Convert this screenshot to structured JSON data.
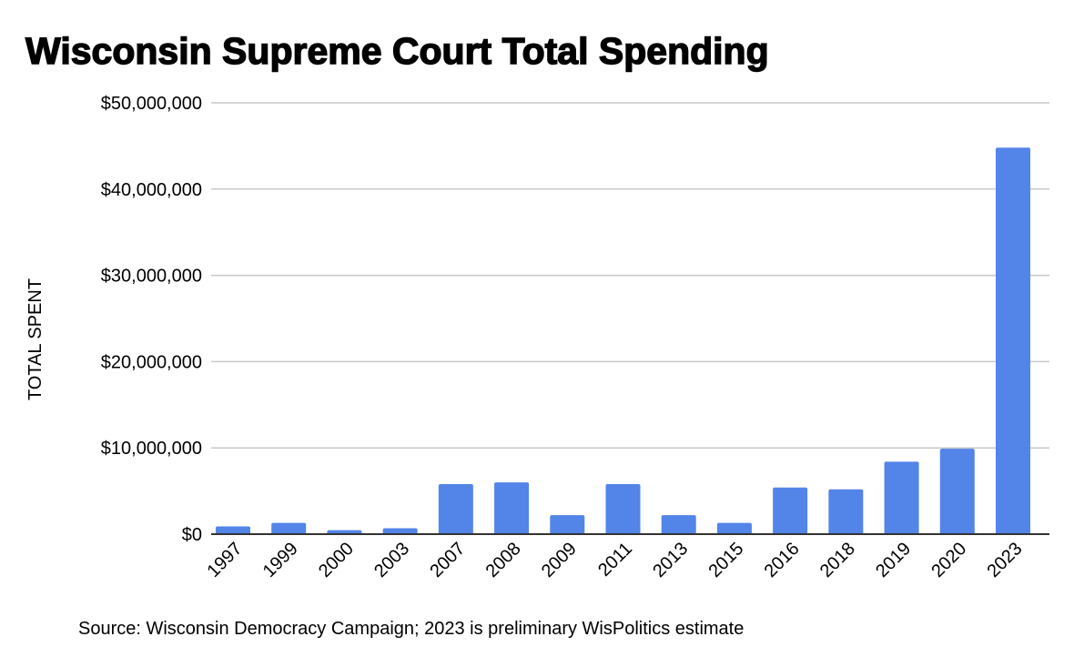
{
  "chart_data": {
    "type": "bar",
    "title": "Wisconsin Supreme Court Total Spending",
    "xlabel": "",
    "ylabel": "TOTAL SPENT",
    "ylim": [
      0,
      50000000
    ],
    "yticks": [
      0,
      10000000,
      20000000,
      30000000,
      40000000,
      50000000
    ],
    "ytick_labels": [
      "$0",
      "$10,000,000",
      "$20,000,000",
      "$30,000,000",
      "$40,000,000",
      "$50,000,000"
    ],
    "grid": true,
    "categories": [
      "1997",
      "1999",
      "2000",
      "2003",
      "2007",
      "2008",
      "2009",
      "2011",
      "2013",
      "2015",
      "2016",
      "2018",
      "2019",
      "2020",
      "2023"
    ],
    "values": [
      900000,
      1300000,
      460000,
      680000,
      5800000,
      6000000,
      2200000,
      5800000,
      2200000,
      1300000,
      5400000,
      5200000,
      8400000,
      9900000,
      44800000
    ],
    "bar_color": "#5384e8",
    "footnote": "Source: Wisconsin Democracy Campaign; 2023 is preliminary WisPolitics estimate"
  }
}
